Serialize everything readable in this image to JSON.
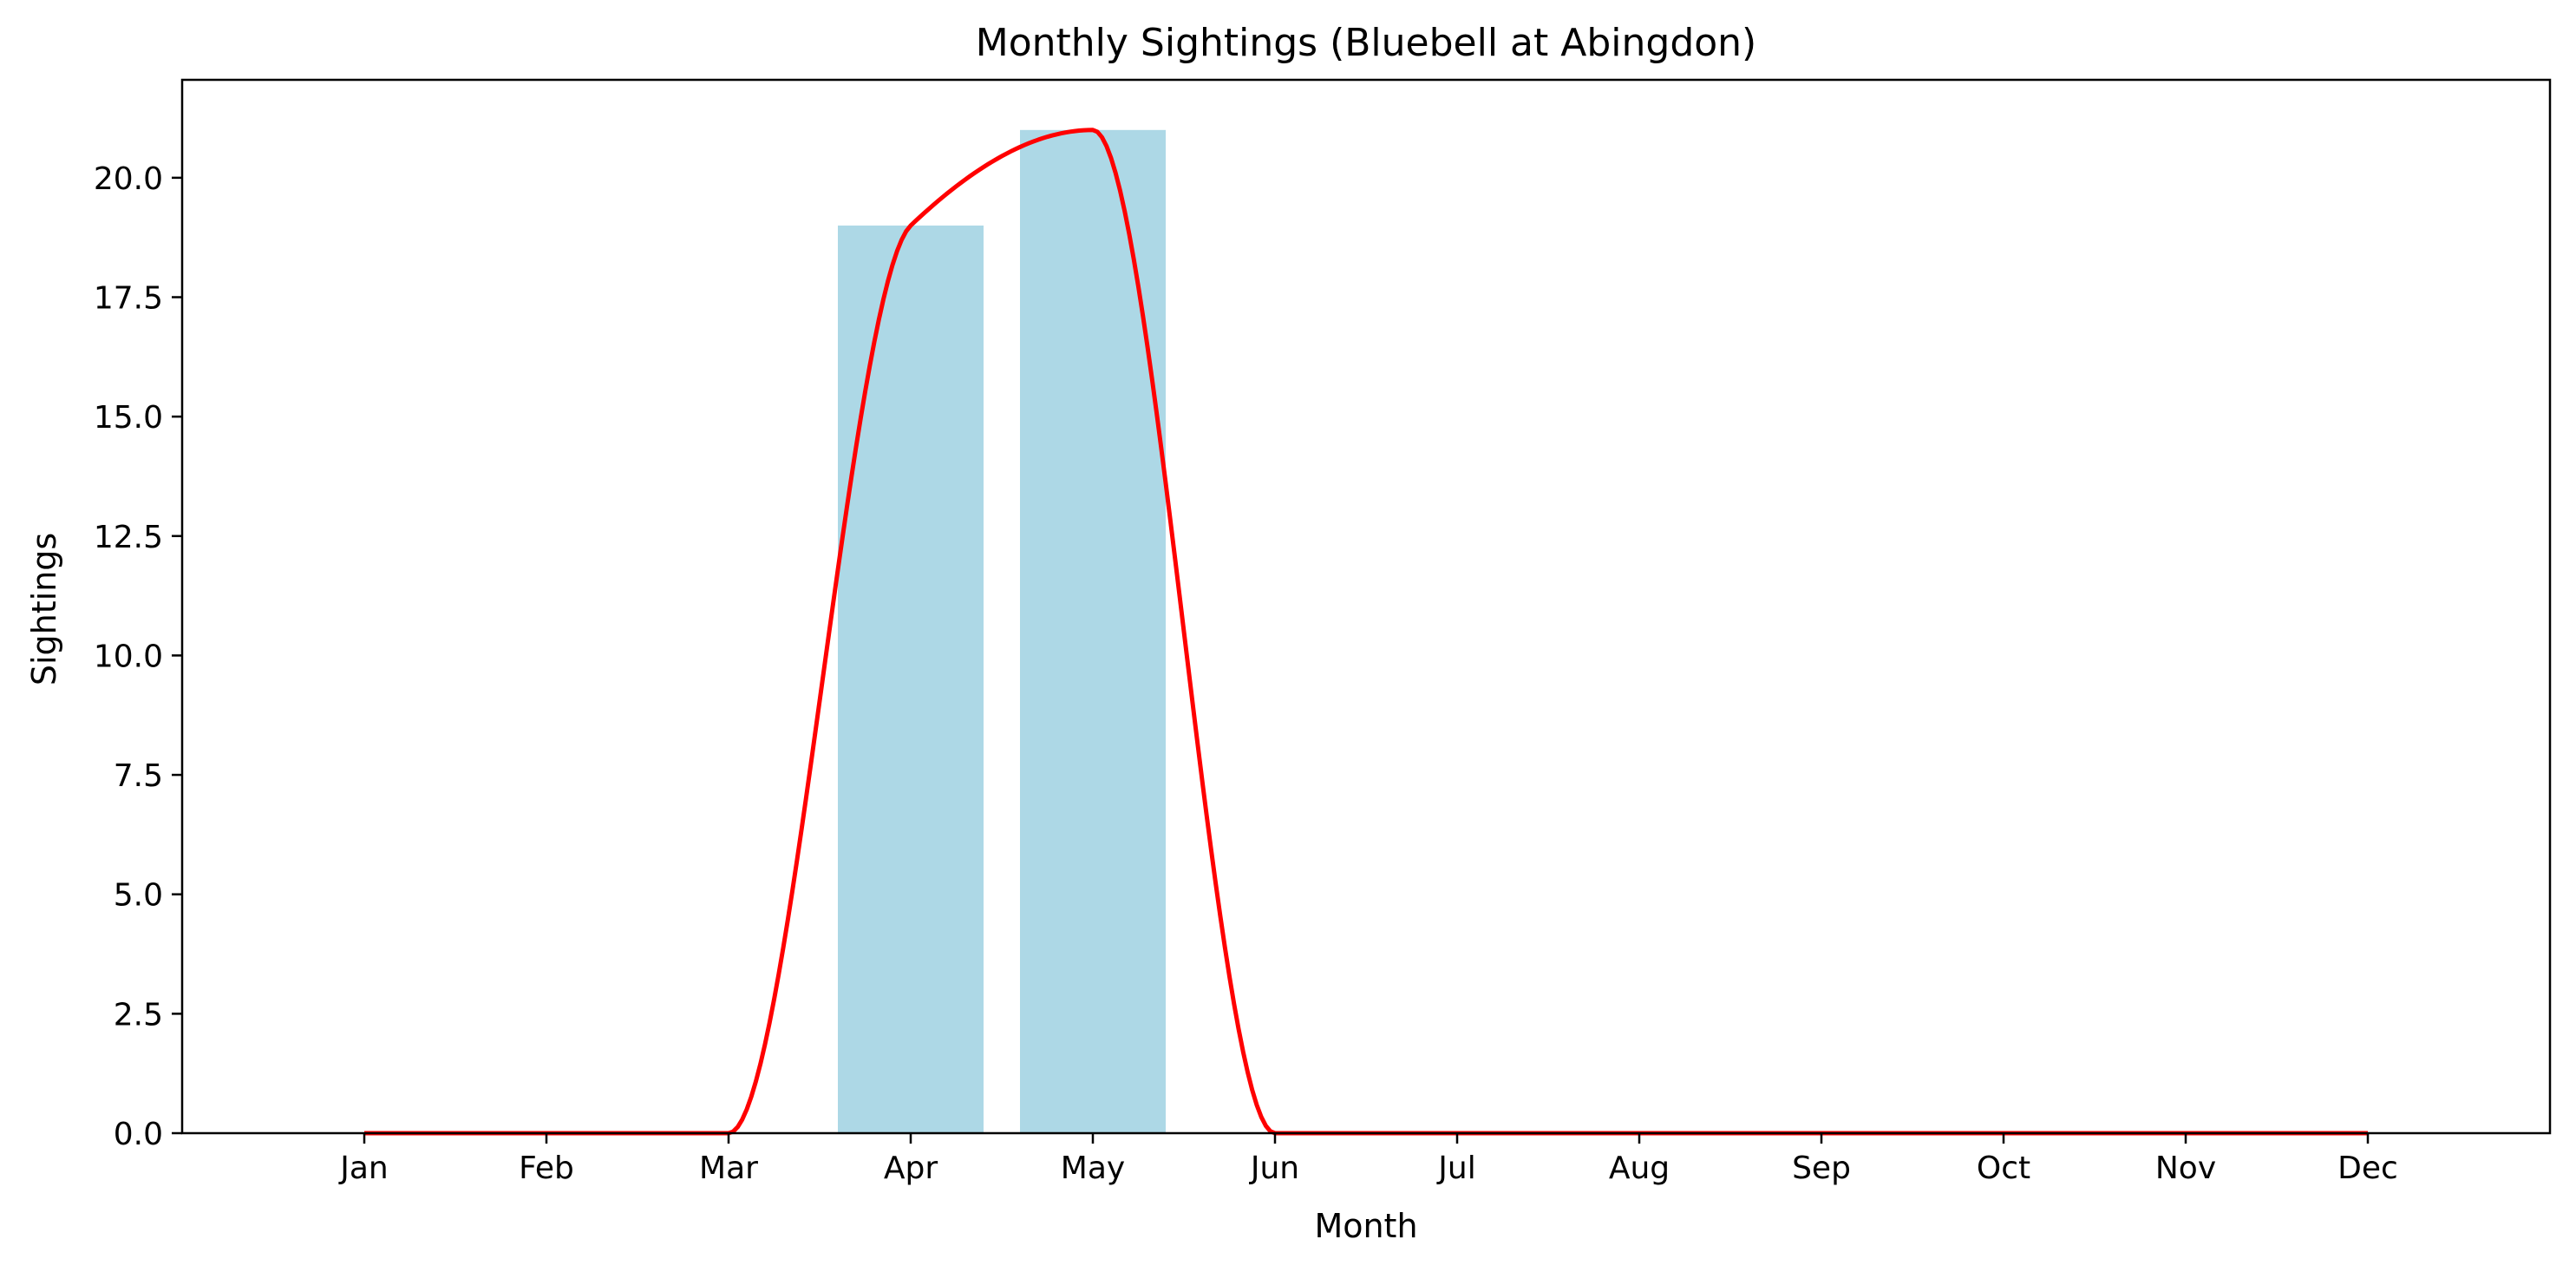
{
  "chart_data": {
    "type": "bar",
    "title": "Monthly Sightings (Bluebell at Abingdon)",
    "xlabel": "Month",
    "ylabel": "Sightings",
    "categories": [
      "Jan",
      "Feb",
      "Mar",
      "Apr",
      "May",
      "Jun",
      "Jul",
      "Aug",
      "Sep",
      "Oct",
      "Nov",
      "Dec"
    ],
    "series": [
      {
        "type": "bar",
        "values": [
          0,
          0,
          0,
          19,
          21,
          0,
          0,
          0,
          0,
          0,
          0,
          0
        ],
        "color": "#add8e6"
      },
      {
        "type": "line",
        "values": [
          0,
          0,
          0,
          19,
          21,
          0,
          0,
          0,
          0,
          0,
          0,
          0
        ],
        "color": "#ff0000",
        "smoothed": true
      }
    ],
    "ylim": [
      0,
      22.05
    ],
    "yticks": [
      "0.0",
      "2.5",
      "5.0",
      "7.5",
      "10.0",
      "12.5",
      "15.0",
      "17.5",
      "20.0"
    ],
    "grid": false,
    "legend": "none"
  }
}
